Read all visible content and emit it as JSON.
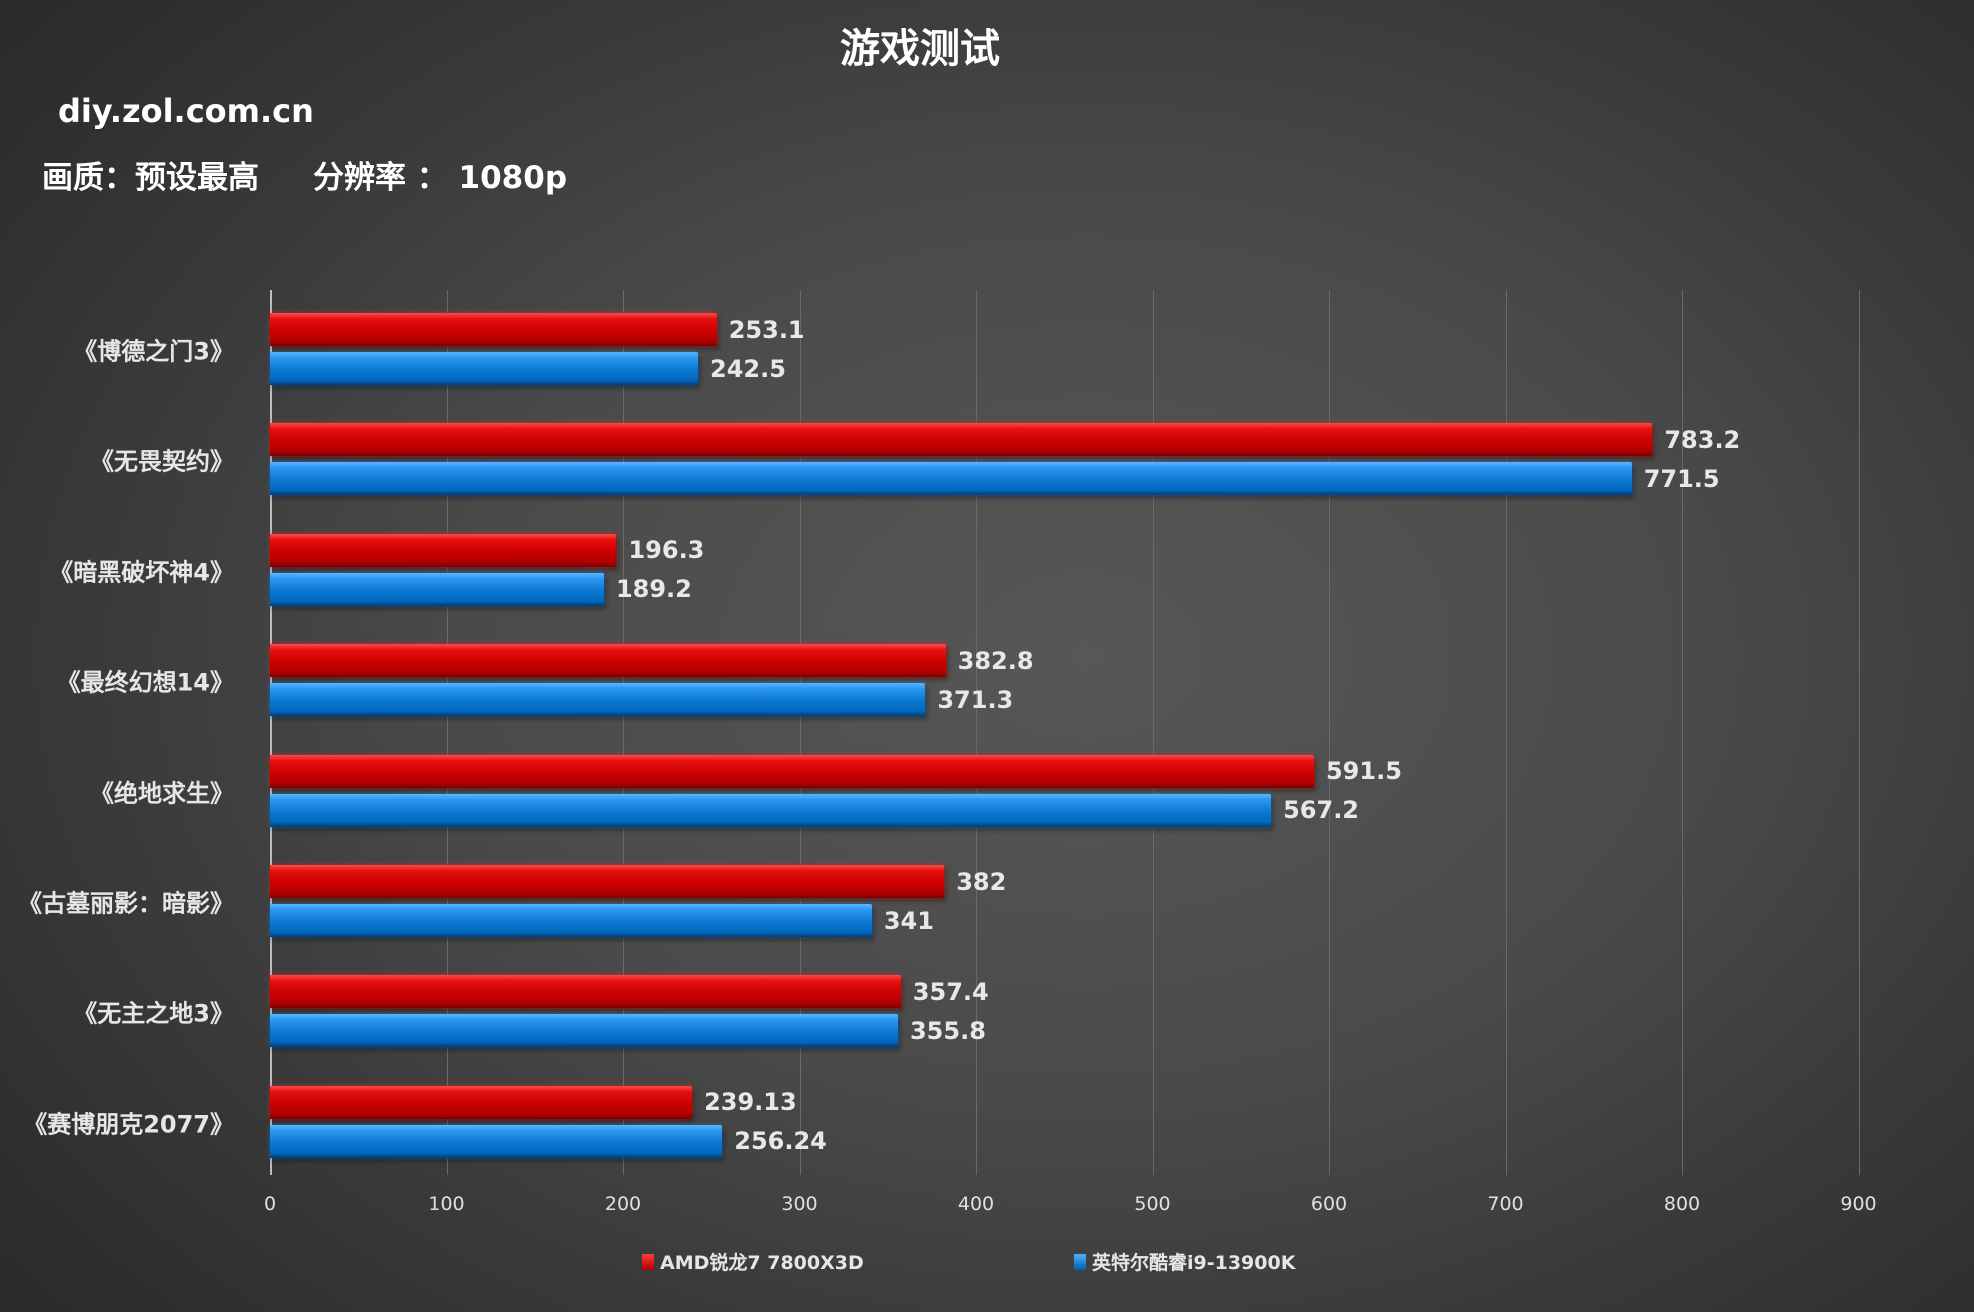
{
  "header": {
    "title": "游戏测试",
    "site": "diy.zol.com.cn",
    "subtitle": "画质：预设最高     分辨率 ： 1080p"
  },
  "colors": {
    "amd": "#cc0000",
    "intel": "#0a78d0",
    "background": "#4a4a4a"
  },
  "axis": {
    "ticks": [
      "0",
      "100",
      "200",
      "300",
      "400",
      "500",
      "600",
      "700",
      "800",
      "900"
    ]
  },
  "legend": {
    "amd": "AMD锐龙7 7800X3D",
    "intel": "英特尔酷睿i9-13900K"
  },
  "chart_data": {
    "type": "bar",
    "orientation": "horizontal",
    "title": "游戏测试",
    "subtitle": "画质：预设最高  分辨率：1080p",
    "categories": [
      "《博德之门3》",
      "《无畏契约》",
      "《暗黑破坏神4》",
      "《最终幻想14》",
      "《绝地求生》",
      "《古墓丽影：暗影》",
      "《无主之地3》",
      "《赛博朋克2077》"
    ],
    "series": [
      {
        "name": "AMD锐龙7 7800X3D",
        "color": "#cc0000",
        "values": [
          253.1,
          783.2,
          196.3,
          382.8,
          591.5,
          382,
          357.4,
          239.13
        ],
        "labels": [
          "253.1",
          "783.2",
          "196.3",
          "382.8",
          "591.5",
          "382",
          "357.4",
          "239.13"
        ]
      },
      {
        "name": "英特尔酷睿i9-13900K",
        "color": "#0a78d0",
        "values": [
          242.5,
          771.5,
          189.2,
          371.3,
          567.2,
          341,
          355.8,
          256.24
        ],
        "labels": [
          "242.5",
          "771.5",
          "189.2",
          "371.3",
          "567.2",
          "341",
          "355.8",
          "256.24"
        ]
      }
    ],
    "xlabel": "",
    "ylabel": "",
    "xlim": [
      0,
      900
    ],
    "xticks": [
      0,
      100,
      200,
      300,
      400,
      500,
      600,
      700,
      800,
      900
    ],
    "grid": true,
    "legend_position": "bottom"
  }
}
